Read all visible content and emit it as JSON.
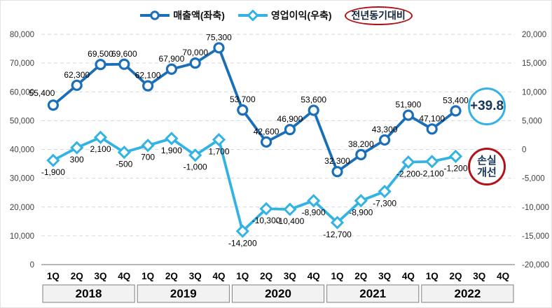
{
  "legend": {
    "revenue_label": "매출액(좌축)",
    "profit_label": "영업이익(우축)",
    "yoy_label": "전년동기대비"
  },
  "annotations": {
    "growth_badge": "+39.8",
    "loss_badge_line1": "손실",
    "loss_badge_line2": "개선"
  },
  "colors": {
    "revenue": "#1b6fb8",
    "profit": "#33b3e3",
    "highlight_red": "#b01218",
    "badge_text": "#17365d",
    "grid": "#d6d6d6",
    "axis_line": "#8c8c8c",
    "label_text": "#000000",
    "tick_text": "#3f3f3f",
    "year_box_fill": "#f2f2f2",
    "year_box_border": "#7f7f7f"
  },
  "chart_data": {
    "type": "line",
    "title": "",
    "categories_quarters": [
      "1Q",
      "2Q",
      "3Q",
      "4Q",
      "1Q",
      "2Q",
      "3Q",
      "4Q",
      "1Q",
      "2Q",
      "3Q",
      "4Q",
      "1Q",
      "2Q",
      "3Q",
      "4Q",
      "1Q",
      "2Q",
      "3Q",
      "4Q"
    ],
    "categories_years": [
      "2018",
      "2019",
      "2020",
      "2021",
      "2022"
    ],
    "series": [
      {
        "name": "매출액(좌축)",
        "axis": "left",
        "marker": "circle",
        "values": [
          55400,
          62300,
          69500,
          69600,
          62100,
          67900,
          70000,
          75300,
          53700,
          42600,
          46900,
          53600,
          32300,
          38200,
          43300,
          51900,
          47100,
          53400,
          null,
          null
        ]
      },
      {
        "name": "영업이익(우축)",
        "axis": "right",
        "marker": "diamond",
        "values": [
          -1900,
          300,
          2100,
          -500,
          700,
          1900,
          -1000,
          1700,
          -14200,
          -10300,
          -10400,
          -8900,
          -12700,
          -8900,
          -7300,
          -2200,
          -2100,
          -1200,
          null,
          null
        ]
      }
    ],
    "left_axis": {
      "min": 0,
      "max": 80000,
      "tick_step": 10000,
      "tick_labels_top_to_bottom": [
        "80,000",
        "70,000",
        "60,000",
        "50,000",
        "40,000",
        "30,000",
        "20,000",
        "10,000",
        "0"
      ]
    },
    "right_axis": {
      "min": -20000,
      "max": 20000,
      "tick_step": 5000,
      "tick_labels_top_to_bottom": [
        "20,000",
        "15,000",
        "10,000",
        "5,000",
        "0",
        "-5,000",
        "-10,000",
        "-15,000",
        "-20,000"
      ]
    },
    "gridlines": "horizontal-dashed",
    "legend_position": "top-center",
    "annotations": [
      {
        "text": "+39.8",
        "shape": "circle",
        "color": "#33b3e3",
        "near": "2022 2Q revenue point"
      },
      {
        "text": "손실 개선",
        "shape": "circle",
        "color": "#b01218",
        "near": "2022 2Q operating-profit point"
      },
      {
        "text": "전년동기대비",
        "shape": "ellipse",
        "color": "#b01218",
        "near": "legend"
      }
    ]
  }
}
